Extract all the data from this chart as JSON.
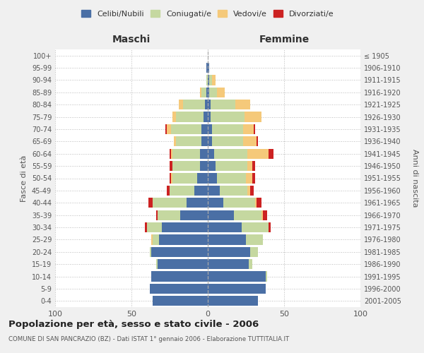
{
  "age_groups": [
    "0-4",
    "5-9",
    "10-14",
    "15-19",
    "20-24",
    "25-29",
    "30-34",
    "35-39",
    "40-44",
    "45-49",
    "50-54",
    "55-59",
    "60-64",
    "65-69",
    "70-74",
    "75-79",
    "80-84",
    "85-89",
    "90-94",
    "95-99",
    "100+"
  ],
  "birth_years": [
    "2001-2005",
    "1996-2000",
    "1991-1995",
    "1986-1990",
    "1981-1985",
    "1976-1980",
    "1971-1975",
    "1966-1970",
    "1961-1965",
    "1956-1960",
    "1951-1955",
    "1946-1950",
    "1941-1945",
    "1936-1940",
    "1931-1935",
    "1926-1930",
    "1921-1925",
    "1916-1920",
    "1911-1915",
    "1906-1910",
    "≤ 1905"
  ],
  "colors": {
    "celibi": "#4a6fa5",
    "coniugati": "#c5d8a0",
    "vedovi": "#f5c97a",
    "divorziati": "#cc2222"
  },
  "males": {
    "celibi": [
      36,
      38,
      37,
      33,
      37,
      32,
      30,
      18,
      14,
      9,
      7,
      5,
      5,
      4,
      4,
      3,
      2,
      1,
      0,
      1,
      0
    ],
    "coniugati": [
      0,
      0,
      0,
      1,
      1,
      4,
      10,
      15,
      22,
      16,
      16,
      18,
      18,
      17,
      20,
      18,
      14,
      3,
      1,
      0,
      0
    ],
    "vedovi": [
      0,
      0,
      0,
      0,
      0,
      1,
      0,
      0,
      0,
      0,
      1,
      0,
      1,
      1,
      3,
      2,
      3,
      1,
      0,
      0,
      0
    ],
    "divorziati": [
      0,
      0,
      0,
      0,
      0,
      0,
      1,
      1,
      3,
      2,
      1,
      2,
      1,
      0,
      1,
      0,
      0,
      0,
      0,
      0,
      0
    ]
  },
  "females": {
    "celibi": [
      33,
      38,
      38,
      27,
      28,
      25,
      22,
      17,
      10,
      8,
      6,
      5,
      4,
      3,
      3,
      2,
      2,
      1,
      1,
      1,
      0
    ],
    "coniugati": [
      0,
      0,
      1,
      2,
      5,
      11,
      18,
      18,
      21,
      18,
      19,
      21,
      22,
      20,
      20,
      22,
      16,
      5,
      2,
      0,
      0
    ],
    "vedovi": [
      0,
      0,
      0,
      0,
      0,
      0,
      0,
      1,
      1,
      2,
      4,
      3,
      14,
      9,
      7,
      11,
      10,
      5,
      2,
      0,
      0
    ],
    "divorziati": [
      0,
      0,
      0,
      0,
      0,
      0,
      1,
      3,
      3,
      2,
      2,
      2,
      3,
      1,
      1,
      0,
      0,
      0,
      0,
      0,
      0
    ]
  },
  "title": "Popolazione per età, sesso e stato civile - 2006",
  "subtitle": "COMUNE DI SAN PANCRAZIO (BZ) - Dati ISTAT 1° gennaio 2006 - Elaborazione TUTTITALIA.IT",
  "xlabel_left": "Maschi",
  "xlabel_right": "Femmine",
  "ylabel_left": "Fasce di età",
  "ylabel_right": "Anni di nascita",
  "xlim": 100,
  "bg_color": "#f0f0f0",
  "plot_bg_color": "#ffffff",
  "legend_labels": [
    "Celibi/Nubili",
    "Coniugati/e",
    "Vedovi/e",
    "Divorziati/e"
  ]
}
